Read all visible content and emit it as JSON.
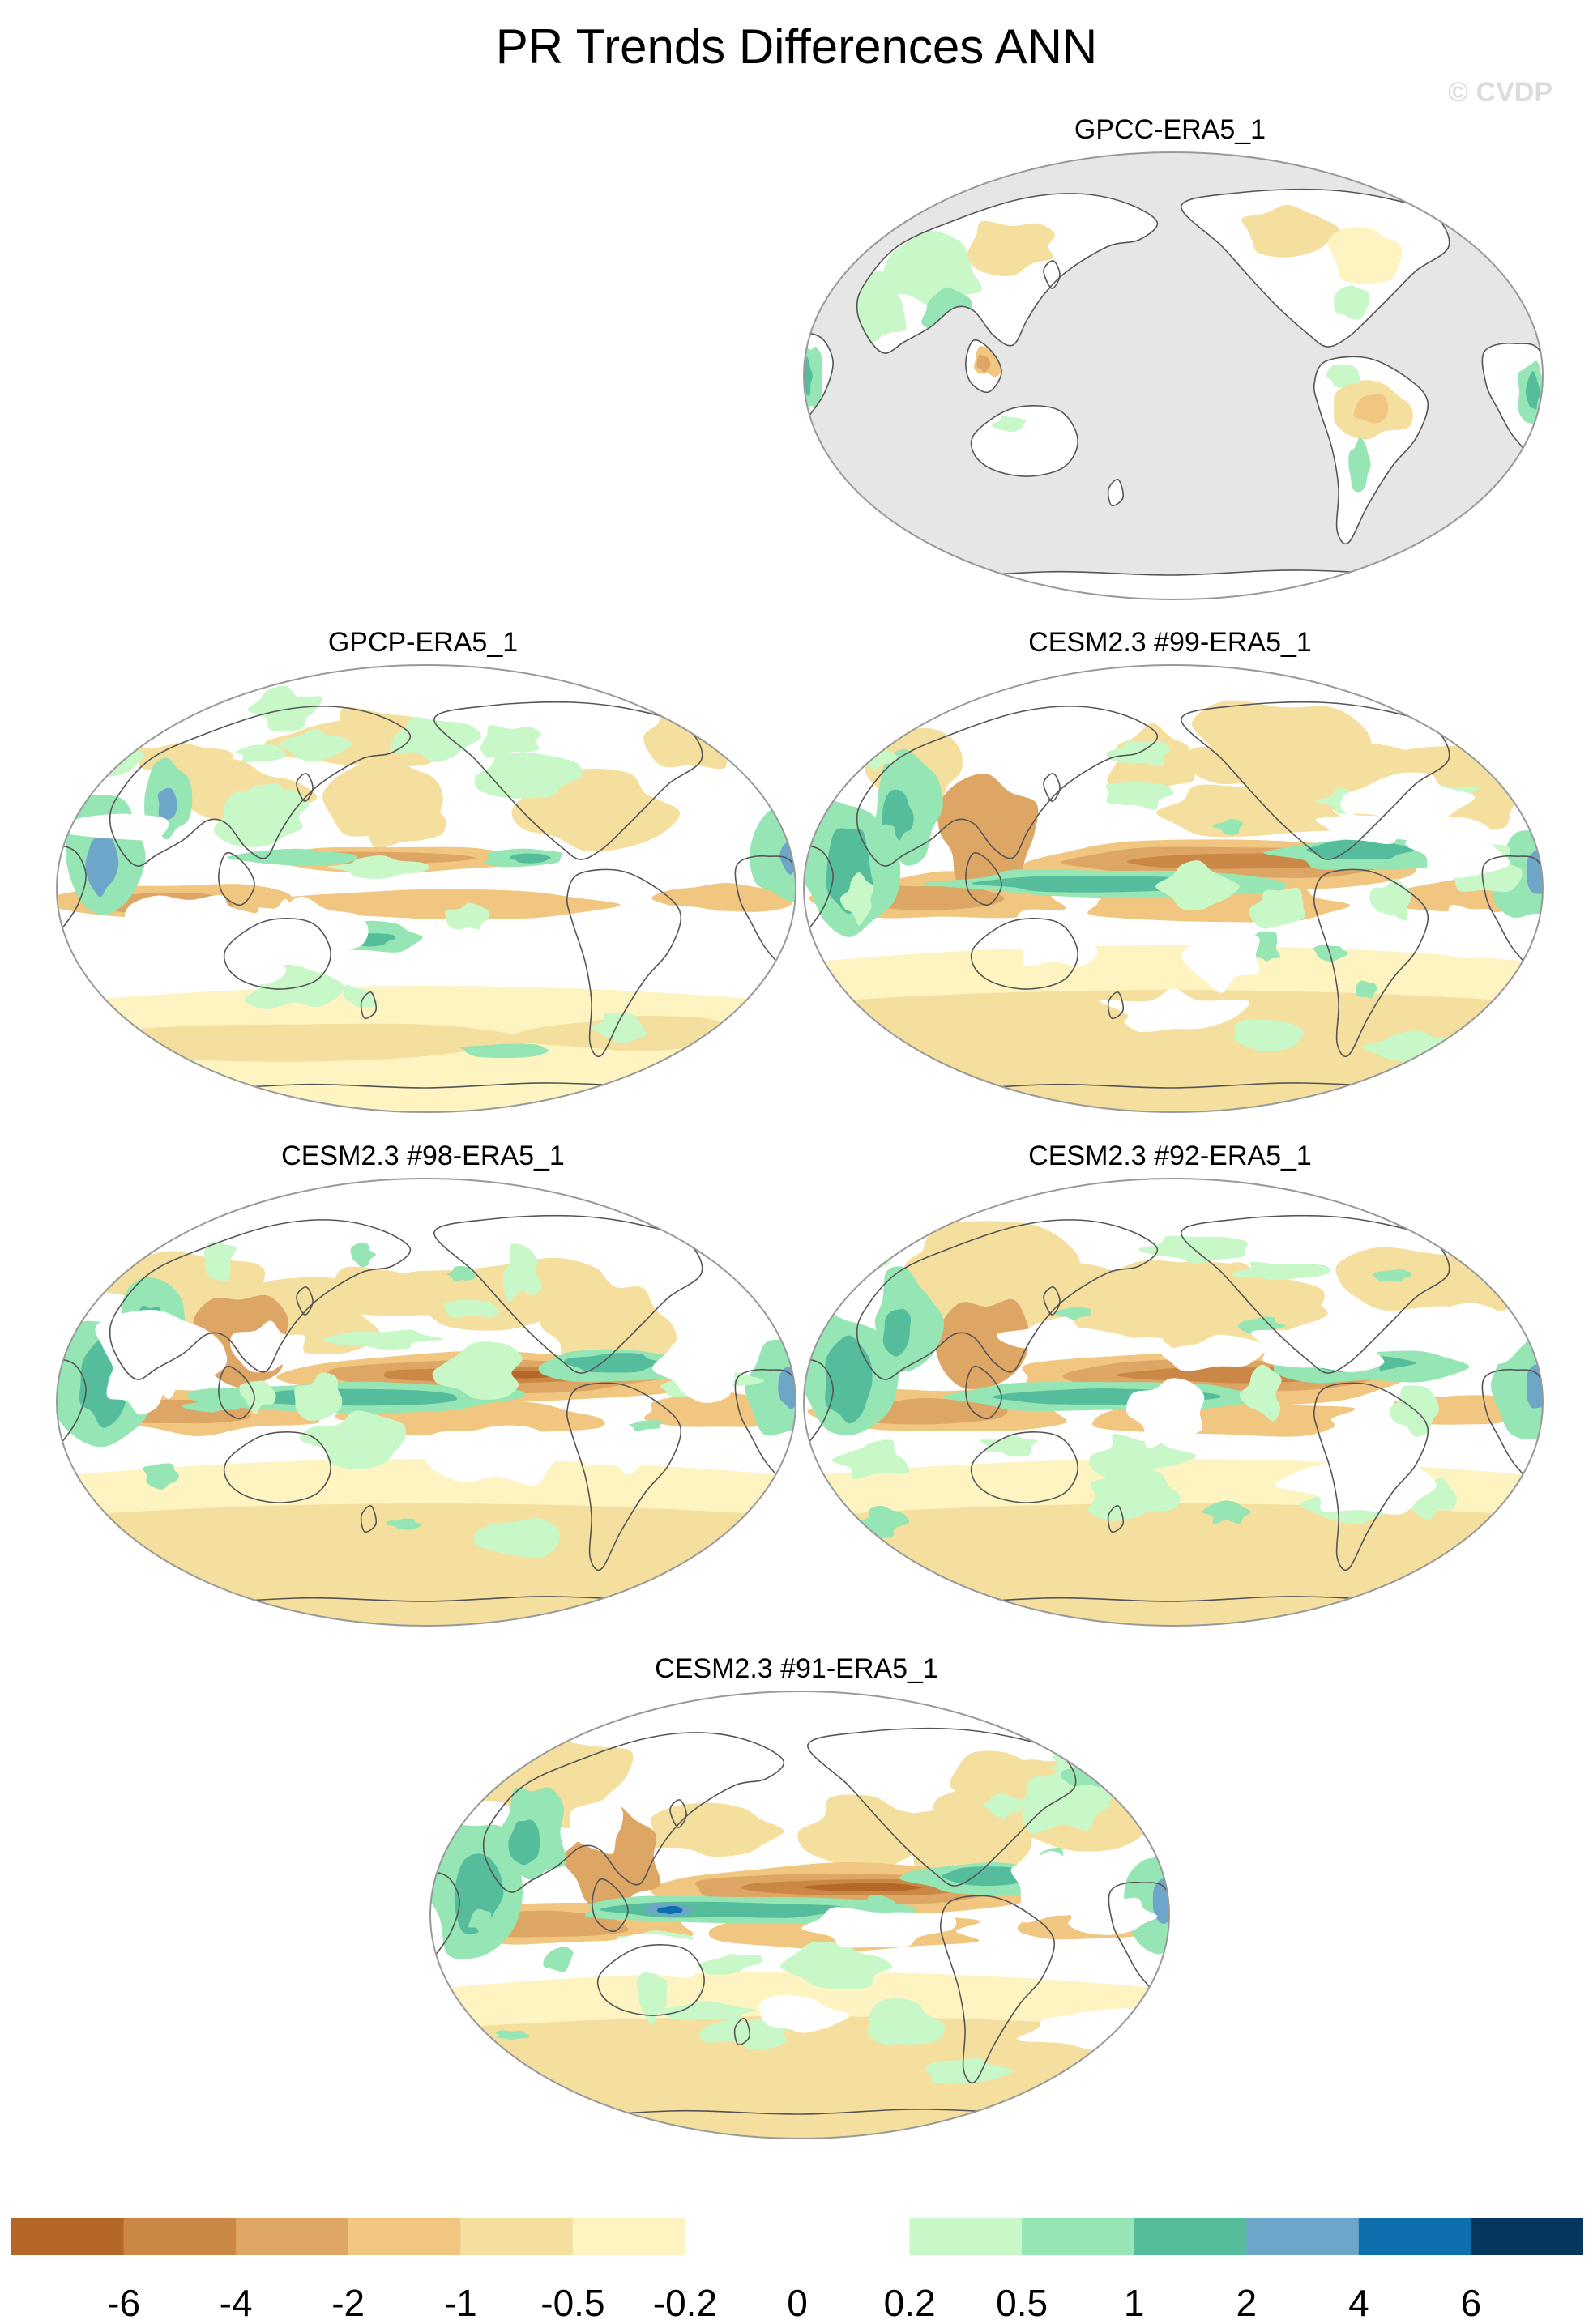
{
  "title": "PR Trends Differences ANN",
  "watermark": "© CVDP",
  "palette": {
    "ocean_masked": "#e6e6e6",
    "land_white": "#ffffff",
    "coast": "#555555",
    "border": "#999999"
  },
  "colorbar": {
    "colors": [
      "#b56728",
      "#cb8746",
      "#dea664",
      "#f0c681",
      "#f4df9f",
      "#fdf4c2",
      "#ffffff",
      "#ffffff",
      "#c8f7c8",
      "#95e6b4",
      "#56bd9c",
      "#6ea6c9",
      "#0e6fae",
      "#06385e"
    ],
    "labels": [
      "-6",
      "-4",
      "-2",
      "-1",
      "-0.5",
      "-0.2",
      "0",
      "0.2",
      "0.5",
      "1",
      "2",
      "4",
      "6"
    ]
  },
  "panels": [
    {
      "title": "GPCC-ERA5_1",
      "type": "land"
    },
    {
      "title": "GPCP-ERA5_1",
      "type": "gpcp"
    },
    {
      "title": "CESM2.3 #99-ERA5_1",
      "type": "model",
      "seed": 99
    },
    {
      "title": "CESM2.3 #98-ERA5_1",
      "type": "model",
      "seed": 98
    },
    {
      "title": "CESM2.3 #92-ERA5_1",
      "type": "model",
      "seed": 92
    },
    {
      "title": "CESM2.3 #91-ERA5_1",
      "type": "model",
      "seed": 91
    }
  ]
}
